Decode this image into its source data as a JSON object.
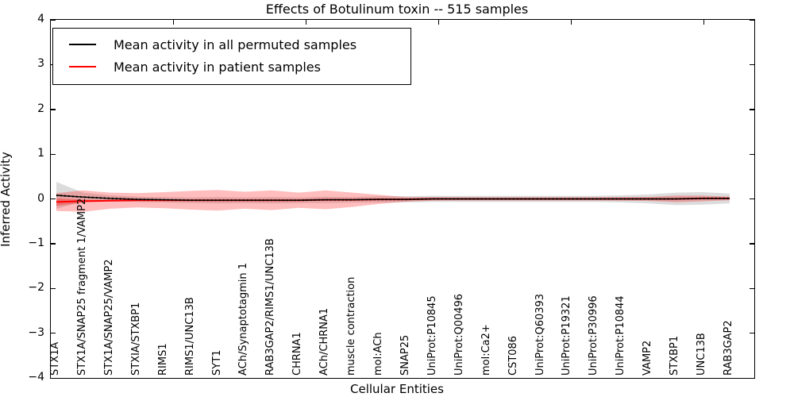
{
  "title": "Effects of Botulinum toxin -- 515 samples",
  "axes": {
    "ylabel": "Inferred Activity",
    "xlabel": "Cellular Entities",
    "y_tick_labels": [
      "4",
      "3",
      "2",
      "1",
      "0",
      "−1",
      "−2",
      "−3",
      "−4"
    ],
    "y_tick_values": [
      4,
      3,
      2,
      1,
      0,
      -1,
      -2,
      -3,
      -4
    ]
  },
  "legend": {
    "items": [
      {
        "label": "Mean activity in all permuted samples",
        "color": "#000000"
      },
      {
        "label": "Mean activity in patient samples",
        "color": "#ff0000"
      }
    ]
  },
  "chart_data": {
    "type": "line",
    "title": "Effects of Botulinum toxin -- 515 samples",
    "xlabel": "Cellular Entities",
    "ylabel": "Inferred Activity",
    "ylim": [
      -4,
      4
    ],
    "grid": false,
    "legend_position": "upper left",
    "categories": [
      "STX1A",
      "STX1A/SNAP25 fragment 1/VAMP2",
      "STX1A/SNAP25/VAMP2",
      "STXIA/STXBP1",
      "RIMS1",
      "RIMS1/UNC13B",
      "SYT1",
      "ACh/Synaptotagmin 1",
      "RAB3GAP2/RIMS1/UNC13B",
      "CHRNA1",
      "ACh/CHRNA1",
      "muscle contraction",
      "mol:ACh",
      "SNAP25",
      "UniProt:P10845",
      "UniProt:Q00496",
      "mol:Ca2+",
      "CST086",
      "UniProt:Q60393",
      "UniProt:P19321",
      "UniProt:P30996",
      "UniProt:P10844",
      "VAMP2",
      "STXBP1",
      "UNC13B",
      "RAB3GAP2"
    ],
    "series": [
      {
        "name": "Mean activity in all permuted samples",
        "color": "#000000",
        "marker": "dotted-overlay",
        "values": [
          0.08,
          0.04,
          0.01,
          -0.01,
          -0.02,
          -0.03,
          -0.03,
          -0.03,
          -0.03,
          -0.03,
          -0.02,
          -0.02,
          -0.01,
          -0.01,
          0.0,
          0.0,
          0.0,
          0.0,
          0.0,
          0.0,
          0.0,
          0.0,
          0.0,
          0.0,
          0.01,
          0.01
        ]
      },
      {
        "name": "Mean activity in patient samples",
        "color": "#ff0000",
        "marker": "none",
        "values": [
          -0.07,
          -0.05,
          -0.04,
          -0.03,
          -0.03,
          -0.03,
          -0.03,
          -0.03,
          -0.03,
          -0.03,
          -0.02,
          -0.02,
          -0.01,
          -0.01,
          0.0,
          0.0,
          0.0,
          0.0,
          0.0,
          0.0,
          0.0,
          0.0,
          0.0,
          0.0,
          0.01,
          0.01
        ]
      }
    ],
    "bands": [
      {
        "name": "permuted samples spread",
        "center_series": 0,
        "color": "rgba(130,130,130,0.28)",
        "half_widths": [
          0.3,
          0.1,
          0.07,
          0.06,
          0.06,
          0.06,
          0.07,
          0.06,
          0.07,
          0.06,
          0.07,
          0.06,
          0.07,
          0.07,
          0.07,
          0.07,
          0.07,
          0.07,
          0.07,
          0.07,
          0.07,
          0.08,
          0.1,
          0.14,
          0.14,
          0.11
        ]
      },
      {
        "name": "patient samples spread",
        "center_series": 1,
        "color": "rgba(255,0,0,0.26)",
        "half_widths": [
          0.2,
          0.24,
          0.18,
          0.16,
          0.18,
          0.21,
          0.23,
          0.19,
          0.22,
          0.17,
          0.21,
          0.16,
          0.1,
          0.05,
          0.04,
          0.035,
          0.035,
          0.035,
          0.035,
          0.035,
          0.035,
          0.04,
          0.045,
          0.075,
          0.065,
          0.04
        ]
      },
      {
        "name": "patient samples inner spread",
        "center_series": 1,
        "color": "rgba(255,0,0,0.30)",
        "half_widths": [
          0.085,
          0.03,
          0.01,
          0,
          0,
          0,
          0,
          0,
          0,
          0,
          0,
          0,
          0,
          0,
          0,
          0,
          0,
          0,
          0,
          0,
          0,
          0,
          0,
          0,
          0,
          0
        ]
      }
    ]
  }
}
